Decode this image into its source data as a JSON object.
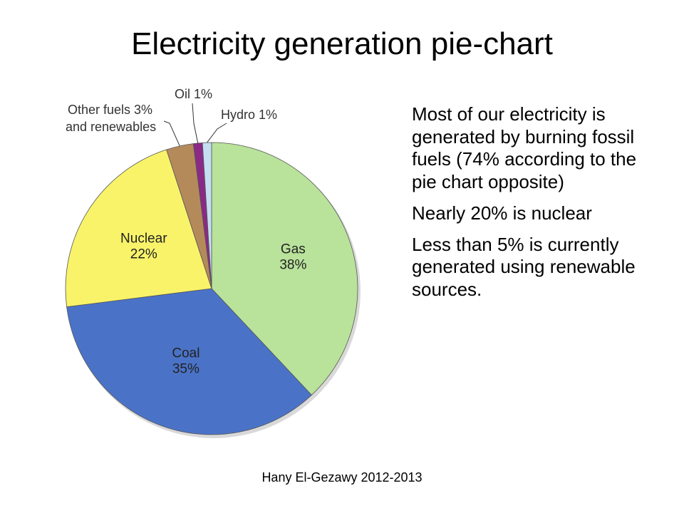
{
  "slide": {
    "title": "Electricity generation pie-chart",
    "footer": "Hany El-Gezawy 2012-2013"
  },
  "text_points": [
    "Most of our electricity is generated by burning fossil fuels (74% according to the pie chart opposite)",
    "Nearly 20% is nuclear",
    "Less than 5% is currently generated using renewable sources."
  ],
  "chart_data": {
    "type": "pie",
    "title": "",
    "slices": [
      {
        "name": "Gas",
        "label": "Gas",
        "value": 38,
        "value_label": "38%",
        "color": "#b9e29b"
      },
      {
        "name": "Coal",
        "label": "Coal",
        "value": 35,
        "value_label": "35%",
        "color": "#4a73c8"
      },
      {
        "name": "Nuclear",
        "label": "Nuclear",
        "value": 22,
        "value_label": "22%",
        "color": "#f9f36a"
      },
      {
        "name": "Other fuels and renewables",
        "label": "Other fuels 3% and renewables",
        "value": 3,
        "value_label": "3%",
        "color": "#b58a5a"
      },
      {
        "name": "Oil",
        "label": "Oil 1%",
        "value": 1,
        "value_label": "1%",
        "color": "#8a2a86"
      },
      {
        "name": "Hydro",
        "label": "Hydro 1%",
        "value": 1,
        "value_label": "1%",
        "color": "#c6def2"
      }
    ],
    "external_labels": {
      "other": [
        "Other fuels 3%",
        "and renewables"
      ],
      "oil": "Oil 1%",
      "hydro": "Hydro 1%"
    }
  }
}
